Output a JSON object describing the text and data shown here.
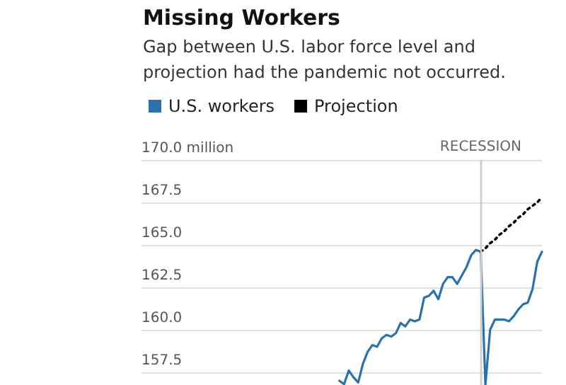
{
  "chart_data": {
    "type": "line",
    "title": "Missing Workers",
    "subtitle": "Gap between U.S. labor force level and projection had the pandemic not occurred.",
    "categories": [
      null,
      null,
      null,
      null,
      null,
      null,
      null,
      null,
      null,
      null,
      null,
      null,
      null,
      null,
      null,
      null,
      null,
      null,
      null,
      null,
      null,
      null,
      null,
      null,
      null,
      null,
      null,
      null,
      null,
      null,
      null,
      null,
      null,
      null,
      null,
      null,
      null,
      null,
      null,
      null,
      null,
      null,
      null,
      null,
      null,
      null,
      null,
      null,
      null,
      null,
      null,
      null,
      null,
      null,
      null,
      null,
      null,
      null,
      null,
      null,
      null,
      null,
      null,
      null,
      null,
      null,
      null,
      null,
      null,
      null,
      null,
      null,
      null,
      null,
      null,
      null,
      null,
      null,
      null,
      null,
      null,
      null,
      null,
      null,
      null,
      null
    ],
    "series": [
      {
        "name": "U.S. workers",
        "color": "#2a72ad",
        "line_style": "solid",
        "values": [
          null,
          null,
          null,
          null,
          null,
          null,
          null,
          null,
          null,
          null,
          null,
          null,
          null,
          null,
          null,
          null,
          null,
          null,
          null,
          null,
          null,
          null,
          null,
          null,
          null,
          null,
          null,
          null,
          null,
          null,
          null,
          null,
          null,
          null,
          null,
          null,
          null,
          null,
          null,
          null,
          null,
          null,
          157.0,
          156.8,
          157.6,
          157.2,
          156.9,
          158.0,
          158.7,
          159.1,
          159.0,
          159.5,
          159.7,
          159.6,
          159.8,
          160.4,
          160.2,
          160.6,
          160.5,
          160.6,
          161.9,
          162.0,
          162.3,
          161.8,
          162.7,
          163.1,
          163.1,
          162.7,
          163.2,
          163.7,
          164.4,
          164.7,
          164.6,
          156.75,
          160.0,
          160.6,
          160.6,
          160.6,
          160.5,
          160.8,
          161.2,
          161.5,
          161.6,
          162.4,
          164.0,
          164.6
        ]
      },
      {
        "name": "Projection",
        "color": "#000000",
        "line_style": "dotted",
        "values": [
          null,
          null,
          null,
          null,
          null,
          null,
          null,
          null,
          null,
          null,
          null,
          null,
          null,
          null,
          null,
          null,
          null,
          null,
          null,
          null,
          null,
          null,
          null,
          null,
          null,
          null,
          null,
          null,
          null,
          null,
          null,
          null,
          null,
          null,
          null,
          null,
          null,
          null,
          null,
          null,
          null,
          null,
          null,
          null,
          null,
          null,
          null,
          null,
          null,
          null,
          null,
          null,
          null,
          null,
          null,
          null,
          null,
          null,
          null,
          null,
          null,
          null,
          null,
          null,
          null,
          null,
          null,
          null,
          null,
          null,
          null,
          null,
          164.6,
          164.8,
          165.1,
          165.3,
          165.6,
          165.8,
          166.1,
          166.3,
          166.6,
          166.8,
          167.1,
          167.3,
          167.5,
          167.8
        ]
      }
    ],
    "ylim": [
      156.75,
      170
    ],
    "yticks": [
      157.5,
      {
        "value": 160,
        "label": "160.0"
      },
      162.5,
      {
        "value": 165,
        "label": "165.0"
      },
      167.5,
      {
        "value": 170,
        "label": "170.0 million"
      }
    ],
    "annotations": [
      "RECESSION"
    ],
    "grid": "y",
    "legend": "top left",
    "tick_labels": "y"
  }
}
